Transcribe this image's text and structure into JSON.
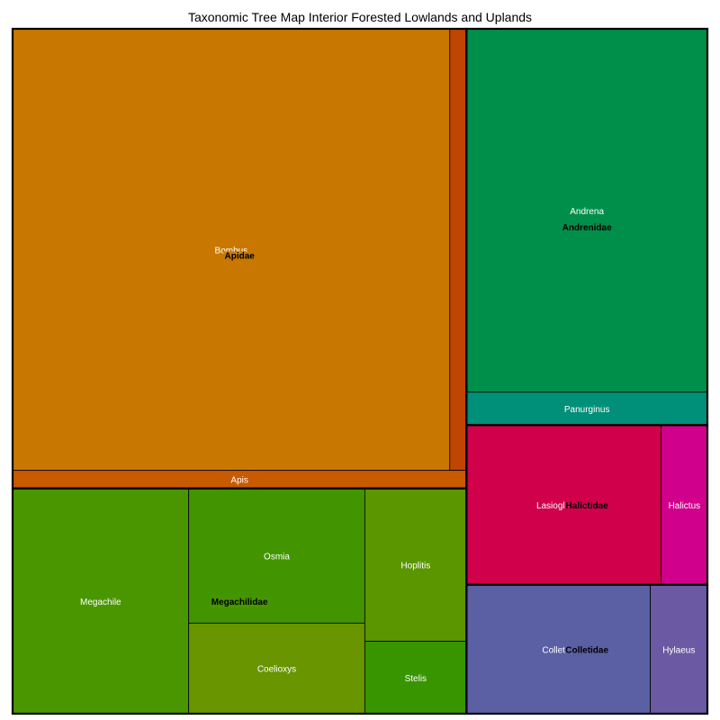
{
  "chart_data": {
    "type": "treemap",
    "title": "Taxonomic Tree Map Interior Forested Lowlands and Uplands",
    "families": [
      {
        "name": "Apidae",
        "color": "#c87800",
        "genera": [
          {
            "name": "Bombus",
            "value": 236000,
            "color": "#c87800",
            "show_label": true
          },
          {
            "name": "",
            "value": 9000,
            "color": "#c04500",
            "show_label": false
          },
          {
            "name": "Apis",
            "value": 10000,
            "color": "#c85a00",
            "show_label": true
          }
        ]
      },
      {
        "name": "Megachilidae",
        "color": "#4a9600",
        "genera": [
          {
            "name": "Megachile",
            "value": 48500,
            "color": "#4a9600",
            "show_label": true
          },
          {
            "name": "Osmia",
            "value": 29000,
            "color": "#439500",
            "show_label": true
          },
          {
            "name": "Coelioxys",
            "value": 19500,
            "color": "#689500",
            "show_label": true
          },
          {
            "name": "Hoplitis",
            "value": 19000,
            "color": "#5b9500",
            "show_label": true
          },
          {
            "name": "Stelis",
            "value": 9000,
            "color": "#389500",
            "show_label": true
          }
        ]
      },
      {
        "name": "Andrenidae",
        "color": "#008f4a",
        "genera": [
          {
            "name": "Andrena",
            "value": 107000,
            "color": "#008f4a",
            "show_label": true
          },
          {
            "name": "Panurginus",
            "value": 9700,
            "color": "#008f78",
            "show_label": true
          }
        ]
      },
      {
        "name": "Halictidae",
        "color": "#d0004a",
        "genera": [
          {
            "name": "Lasioglossum",
            "value": 38000,
            "color": "#d0004a",
            "show_label": true
          },
          {
            "name": "Halictus",
            "value": 9000,
            "color": "#d0008c",
            "show_label": true
          }
        ]
      },
      {
        "name": "Colletidae",
        "color": "#5b5fa3",
        "genera": [
          {
            "name": "Colletes",
            "value": 29000,
            "color": "#5b5fa3",
            "show_label": true
          },
          {
            "name": "Hylaeus",
            "value": 9000,
            "color": "#6b5aa3",
            "show_label": true
          }
        ]
      }
    ]
  }
}
